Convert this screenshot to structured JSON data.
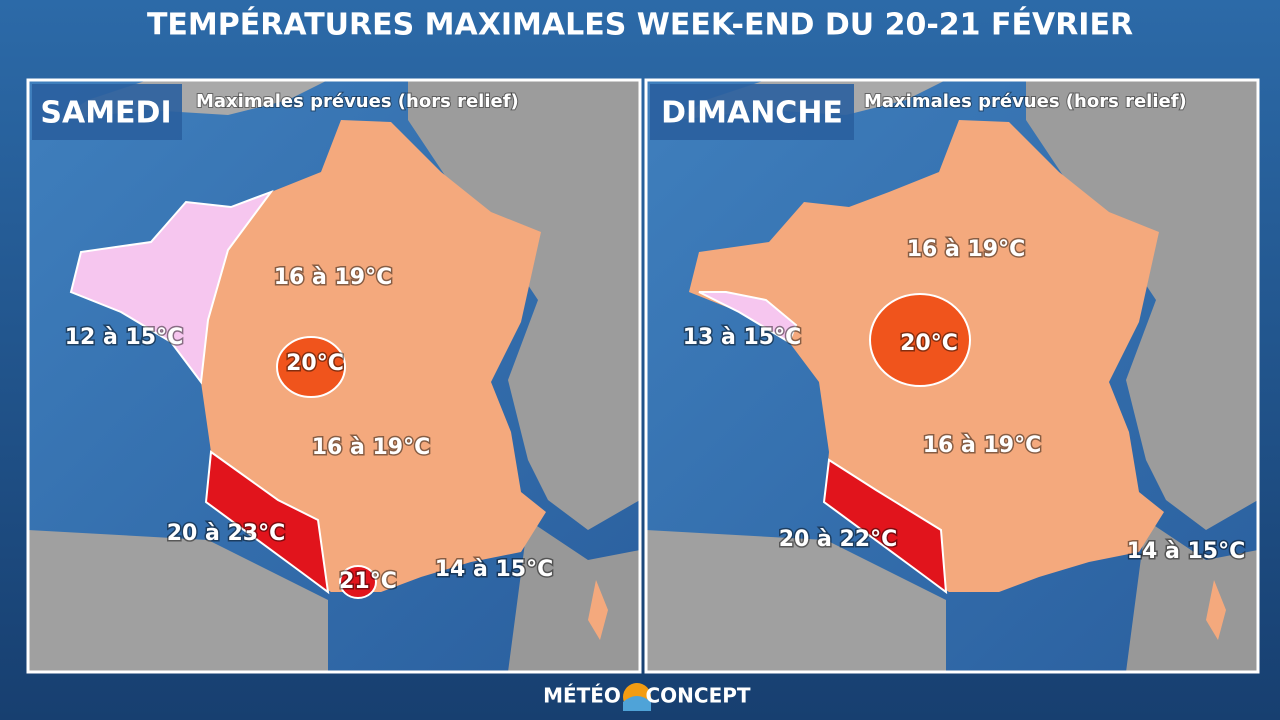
{
  "title": "TEMPÉRATURES MAXIMALES WEEK-END DU 20-21 FÉVRIER",
  "panels": [
    {
      "day": "SAMEDI",
      "subtitle": "Maximales prévues (hors relief)",
      "zones": [
        {
          "label": "16 à 19°C"
        },
        {
          "label": "12 à 15°C"
        },
        {
          "label": "20°C"
        },
        {
          "label": "16 à 19°C"
        },
        {
          "label": "20 à 23°C"
        },
        {
          "label": "21°C"
        },
        {
          "label": "14 à 15°C"
        }
      ]
    },
    {
      "day": "DIMANCHE",
      "subtitle": "Maximales prévues (hors relief)",
      "zones": [
        {
          "label": "16 à 19°C"
        },
        {
          "label": "13 à 15°C"
        },
        {
          "label": "20°C"
        },
        {
          "label": "16 à 19°C"
        },
        {
          "label": "20 à 22°C"
        },
        {
          "label": "14 à 15°C"
        }
      ]
    }
  ],
  "logo": {
    "left": "MÉTÉO",
    "right": "CONCEPT"
  }
}
